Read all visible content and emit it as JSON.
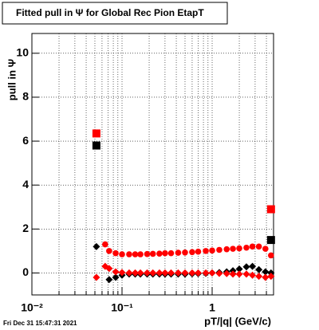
{
  "chart_data": {
    "type": "scatter",
    "title": "Fitted pull in  Ψ  for Global Rec Pion EtapT",
    "y_label": "pull in Ψ",
    "x_label": "pT/|q| (GeV/c)",
    "timestamp": "Fri Dec 31 15:47:31 2021",
    "log_x": true,
    "grid": true,
    "xlim": [
      0.01,
      4.8
    ],
    "ylim": [
      -1,
      10.9
    ],
    "xticks": [
      {
        "value": 0.01,
        "label": "10⁻²"
      },
      {
        "value": 0.1,
        "label": "10⁻¹"
      },
      1
    ],
    "xminor": [
      0.02,
      0.03,
      0.04,
      0.05,
      0.06,
      0.07,
      0.08,
      0.09,
      0.2,
      0.3,
      0.4,
      0.5,
      0.6,
      0.7,
      0.8,
      0.9,
      2,
      3,
      4
    ],
    "yticks": [
      0,
      2,
      4,
      6,
      8,
      10
    ],
    "series": [
      {
        "color": "#ff0000",
        "marker": "circle",
        "x": [
          0.065,
          0.072,
          0.085,
          0.1,
          0.12,
          0.14,
          0.16,
          0.19,
          0.22,
          0.26,
          0.3,
          0.35,
          0.42,
          0.5,
          0.6,
          0.7,
          0.85,
          1.0,
          1.2,
          1.45,
          1.7,
          2.0,
          2.4,
          2.8,
          3.3,
          3.9,
          4.5
        ],
        "values": [
          1.3,
          1.0,
          0.9,
          0.85,
          0.85,
          0.85,
          0.85,
          0.86,
          0.87,
          0.88,
          0.9,
          0.9,
          0.92,
          0.93,
          0.95,
          0.97,
          1.0,
          1.02,
          1.05,
          1.08,
          1.1,
          1.12,
          1.15,
          1.2,
          1.2,
          1.1,
          0.8
        ]
      },
      {
        "color": "#000000",
        "marker": "diamond",
        "x": [
          0.052,
          0.072,
          0.085,
          0.1,
          0.12,
          0.14,
          0.16,
          0.19,
          0.22,
          0.26,
          0.3,
          0.35,
          0.42,
          0.5,
          0.6,
          0.7,
          0.85,
          1.0,
          1.2,
          1.45,
          1.7,
          2.0,
          2.4,
          2.8,
          3.3,
          3.9,
          4.5
        ],
        "values": [
          1.2,
          -0.3,
          -0.2,
          -0.1,
          -0.05,
          -0.05,
          -0.05,
          -0.05,
          -0.05,
          -0.05,
          -0.05,
          -0.05,
          -0.05,
          -0.05,
          -0.04,
          -0.03,
          -0.02,
          0,
          0.02,
          0.05,
          0.1,
          0.18,
          0.28,
          0.3,
          0.15,
          0.05,
          0
        ]
      },
      {
        "color": "#ff0000",
        "marker": "diamond",
        "x": [
          0.052,
          0.065,
          0.072,
          0.085,
          0.1,
          0.12,
          0.14,
          0.16,
          0.19,
          0.22,
          0.26,
          0.3,
          0.35,
          0.42,
          0.5,
          0.6,
          0.7,
          0.85,
          1.0,
          1.2,
          1.45,
          1.7,
          2.0,
          2.4,
          2.8,
          3.3,
          3.9,
          4.5
        ],
        "values": [
          -0.2,
          0.3,
          0.2,
          0.05,
          0.02,
          0.0,
          0.0,
          0.0,
          0.0,
          0.0,
          0.0,
          0.0,
          0.0,
          0.0,
          0.0,
          0.0,
          0.0,
          0.0,
          0.0,
          -0.02,
          -0.03,
          -0.05,
          -0.05,
          -0.05,
          -0.1,
          -0.15,
          -0.2,
          -0.15
        ]
      },
      {
        "color": "#ff0000",
        "marker": "square",
        "x": [
          0.052,
          4.5
        ],
        "values": [
          6.35,
          2.9
        ]
      },
      {
        "color": "#000000",
        "marker": "square",
        "x": [
          0.052,
          4.5
        ],
        "values": [
          5.8,
          1.5
        ]
      }
    ]
  }
}
